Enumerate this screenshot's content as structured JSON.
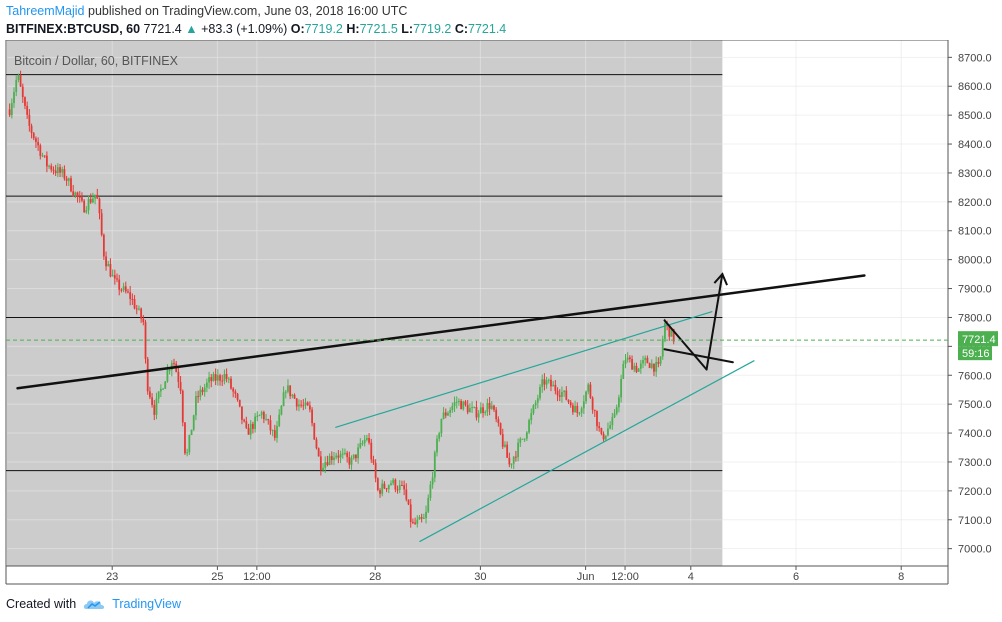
{
  "header": {
    "author": "TahreemMajid",
    "published": "published on TradingView.com, June 03, 2018 16:00 UTC",
    "symbol": "BITFINEX:BTCUSD, 60",
    "last": "7721.4",
    "change_arrow": "▲",
    "change": "+83.3 (+1.09%)",
    "o_label": "O:",
    "o_value": "7719.2",
    "h_label": "H:",
    "h_value": "7721.5",
    "l_label": "L:",
    "l_value": "7719.2",
    "c_label": "C:",
    "c_value": "7721.4"
  },
  "footer": {
    "created_with": "Created with",
    "brand": "TradingView",
    "logo_icon": "tradingview-cloud-icon"
  },
  "chart_data": {
    "type": "candlestick",
    "title": "Bitcoin / Dollar, 60, BITFINEX",
    "ylim": [
      6940,
      8760
    ],
    "y_ticks": [
      7000,
      7100,
      7200,
      7300,
      7400,
      7500,
      7600,
      7700,
      7800,
      7900,
      8000,
      8100,
      8200,
      8300,
      8400,
      8500,
      8600,
      8700
    ],
    "y_tick_labels": [
      "7000.0",
      "7100.0",
      "7200.0",
      "7300.0",
      "7400.0",
      "7500.0",
      "7600.0",
      "7700.0",
      "7800.0",
      "7900.0",
      "8000.0",
      "8100.0",
      "8200.0",
      "8300.0",
      "8400.0",
      "8500.0",
      "8600.0",
      "8700.0"
    ],
    "x_ticks": [
      {
        "t": 3.0,
        "label": "23"
      },
      {
        "t": 5.0,
        "label": "25"
      },
      {
        "t": 5.75,
        "label": "12:00"
      },
      {
        "t": 8.0,
        "label": "28"
      },
      {
        "t": 10.0,
        "label": "30"
      },
      {
        "t": 12.0,
        "label": "Jun"
      },
      {
        "t": 12.75,
        "label": "12:00"
      },
      {
        "t": 14.0,
        "label": "4"
      },
      {
        "t": 16.0,
        "label": "6"
      },
      {
        "t": 18.0,
        "label": "8"
      }
    ],
    "x_unit": "days from May 20, 2018 00:00 UTC",
    "last_price": 7721.4,
    "last_price_label": "7721.4",
    "countdown_label": "59:16",
    "colors": {
      "up": "#4caf50",
      "down": "#e53935",
      "highlight": "#cccccc",
      "last": "#4caf50"
    },
    "highlight_range": [
      1.0,
      14.6
    ],
    "candle_path": [
      [
        1.05,
        8520
      ],
      [
        1.2,
        8640
      ],
      [
        1.4,
        8470
      ],
      [
        1.75,
        8330
      ],
      [
        2.1,
        8290
      ],
      [
        2.45,
        8180
      ],
      [
        2.7,
        8230
      ],
      [
        2.85,
        8010
      ],
      [
        3.05,
        7920
      ],
      [
        3.35,
        7870
      ],
      [
        3.6,
        7780
      ],
      [
        3.65,
        7580
      ],
      [
        3.8,
        7480
      ],
      [
        4.0,
        7590
      ],
      [
        4.15,
        7660
      ],
      [
        4.3,
        7560
      ],
      [
        4.4,
        7300
      ],
      [
        4.6,
        7520
      ],
      [
        4.85,
        7580
      ],
      [
        5.15,
        7600
      ],
      [
        5.35,
        7520
      ],
      [
        5.55,
        7400
      ],
      [
        5.85,
        7470
      ],
      [
        6.1,
        7380
      ],
      [
        6.3,
        7560
      ],
      [
        6.55,
        7500
      ],
      [
        6.75,
        7480
      ],
      [
        6.95,
        7290
      ],
      [
        7.25,
        7330
      ],
      [
        7.55,
        7300
      ],
      [
        7.85,
        7390
      ],
      [
        8.05,
        7200
      ],
      [
        8.3,
        7230
      ],
      [
        8.55,
        7200
      ],
      [
        8.7,
        7080
      ],
      [
        8.95,
        7100
      ],
      [
        9.25,
        7450
      ],
      [
        9.55,
        7510
      ],
      [
        9.9,
        7470
      ],
      [
        10.2,
        7500
      ],
      [
        10.55,
        7290
      ],
      [
        10.85,
        7400
      ],
      [
        11.2,
        7580
      ],
      [
        11.55,
        7540
      ],
      [
        11.85,
        7470
      ],
      [
        12.05,
        7560
      ],
      [
        12.3,
        7380
      ],
      [
        12.55,
        7450
      ],
      [
        12.75,
        7660
      ],
      [
        13.0,
        7620
      ],
      [
        13.15,
        7650
      ],
      [
        13.4,
        7620
      ],
      [
        13.5,
        7780
      ],
      [
        13.7,
        7721
      ]
    ],
    "horizontal_lines": [
      7270,
      7800,
      8220,
      8640
    ],
    "trendlines": [
      {
        "name": "black-resistance-line",
        "color": "#111111",
        "width": 2.5,
        "p1": [
          1.2,
          7555
        ],
        "p2": [
          17.3,
          7945
        ]
      },
      {
        "name": "upper-wedge-line",
        "color": "#26a69a",
        "width": 1.2,
        "p1": [
          7.25,
          7420
        ],
        "p2": [
          14.4,
          7820
        ]
      },
      {
        "name": "lower-wedge-line",
        "color": "#26a69a",
        "width": 1.2,
        "p1": [
          8.85,
          7025
        ],
        "p2": [
          15.2,
          7650
        ]
      },
      {
        "name": "flag-upper-line",
        "color": "#111111",
        "width": 2.0,
        "p1": [
          13.5,
          7790
        ],
        "p2": [
          14.3,
          7620
        ]
      },
      {
        "name": "flag-lower-line",
        "color": "#111111",
        "width": 2.0,
        "p1": [
          13.5,
          7690
        ],
        "p2": [
          14.8,
          7645
        ]
      },
      {
        "name": "breakout-arrow-line",
        "color": "#111111",
        "width": 2.0,
        "p1": [
          14.3,
          7620
        ],
        "p2": [
          14.6,
          7950
        ]
      }
    ]
  }
}
